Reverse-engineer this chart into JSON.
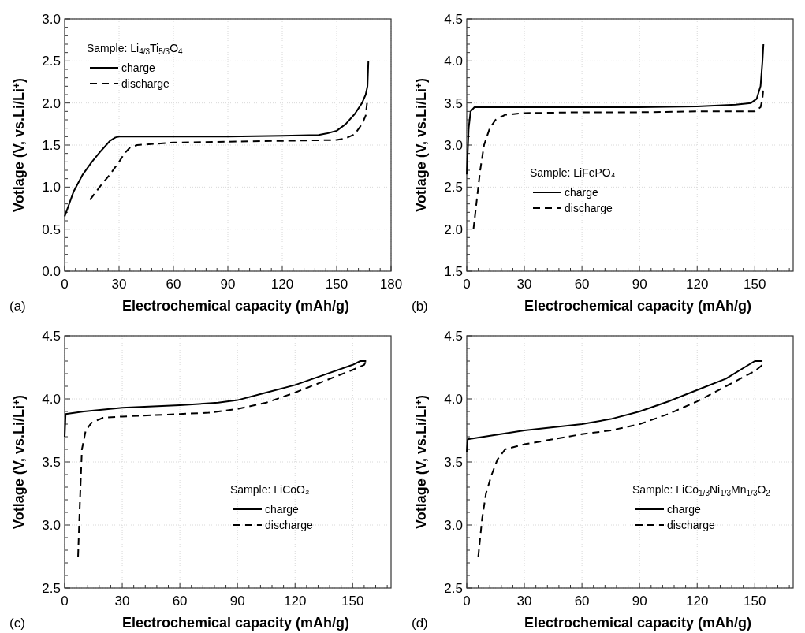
{
  "chart_data": [
    {
      "type": "line",
      "xlabel": "Electrochemical capacity (mAh/g)",
      "ylabel": "Votlage (V, vs.Li/Li$^{+}$)",
      "legend_title": "Sample: Li$_{4/3}$Ti$_{5/3}$O$_{4}$",
      "legend": "top left",
      "grid": true,
      "annotations": [
        "(a)"
      ],
      "xlim": [
        0,
        180
      ],
      "ylim": [
        0,
        3
      ],
      "xticks": [
        0,
        {
          "value": 6,
          "label": null
        },
        {
          "value": 12,
          "label": null
        },
        {
          "value": 18,
          "label": null
        },
        {
          "value": 24,
          "label": null
        },
        30,
        {
          "value": 36,
          "label": null
        },
        {
          "value": 42,
          "label": null
        },
        {
          "value": 48,
          "label": null
        },
        {
          "value": 54,
          "label": null
        },
        60,
        {
          "value": 66,
          "label": null
        },
        {
          "value": 72,
          "label": null
        },
        {
          "value": 78,
          "label": null
        },
        {
          "value": 84,
          "label": null
        },
        90,
        {
          "value": 96,
          "label": null
        },
        {
          "value": 102,
          "label": null
        },
        {
          "value": 108,
          "label": null
        },
        {
          "value": 114,
          "label": null
        },
        120,
        {
          "value": 126,
          "label": null
        },
        {
          "value": 132,
          "label": null
        },
        {
          "value": 138,
          "label": null
        },
        {
          "value": 144,
          "label": null
        },
        150,
        {
          "value": 156,
          "label": null
        },
        {
          "value": 162,
          "label": null
        },
        {
          "value": 168,
          "label": null
        },
        {
          "value": 174,
          "label": null
        },
        180
      ],
      "yticks": [
        {
          "value": 0,
          "label": "0.0"
        },
        {
          "value": 0.1,
          "label": null
        },
        {
          "value": 0.2,
          "label": null
        },
        {
          "value": 0.3,
          "label": null
        },
        {
          "value": 0.4,
          "label": null
        },
        0.5,
        {
          "value": 0.6,
          "label": null
        },
        {
          "value": 0.7,
          "label": null
        },
        {
          "value": 0.8,
          "label": null
        },
        {
          "value": 0.9,
          "label": null
        },
        {
          "value": 1,
          "label": "1.0"
        },
        {
          "value": 1.1,
          "label": null
        },
        {
          "value": 1.2,
          "label": null
        },
        {
          "value": 1.3,
          "label": null
        },
        {
          "value": 1.4,
          "label": null
        },
        1.5,
        {
          "value": 1.6,
          "label": null
        },
        {
          "value": 1.7,
          "label": null
        },
        {
          "value": 1.8,
          "label": null
        },
        {
          "value": 1.9,
          "label": null
        },
        {
          "value": 2,
          "label": "2.0"
        },
        {
          "value": 2.1,
          "label": null
        },
        {
          "value": 2.2,
          "label": null
        },
        {
          "value": 2.3,
          "label": null
        },
        {
          "value": 2.4,
          "label": null
        },
        2.5,
        {
          "value": 2.6,
          "label": null
        },
        {
          "value": 2.7,
          "label": null
        },
        {
          "value": 2.8,
          "label": null
        },
        {
          "value": 2.9,
          "label": null
        },
        {
          "value": 3,
          "label": "3.0"
        }
      ],
      "series": [
        {
          "name": "charge",
          "color": "#000000",
          "line_style": "solid",
          "x": [
            0,
            5,
            10,
            15,
            20,
            25,
            28,
            30,
            60,
            90,
            120,
            140,
            145,
            150,
            155,
            160,
            164,
            166,
            167,
            167.5
          ],
          "values": [
            0.65,
            0.95,
            1.15,
            1.3,
            1.43,
            1.55,
            1.59,
            1.6,
            1.6,
            1.6,
            1.61,
            1.62,
            1.64,
            1.67,
            1.75,
            1.87,
            2.0,
            2.1,
            2.2,
            2.5
          ]
        },
        {
          "name": "discharge",
          "color": "#000000",
          "line_style": "dashed",
          "x": [
            14,
            20,
            25,
            30,
            33,
            36,
            40,
            60,
            90,
            120,
            150,
            155,
            160,
            164,
            166,
            167
          ],
          "values": [
            0.85,
            1.02,
            1.15,
            1.3,
            1.4,
            1.47,
            1.5,
            1.53,
            1.54,
            1.55,
            1.56,
            1.58,
            1.63,
            1.75,
            1.85,
            2.05
          ]
        }
      ]
    },
    {
      "type": "line",
      "xlabel": "Electrochemical capacity (mAh/g)",
      "ylabel": "Votlage (V, vs.Li/Li$^{+}$)",
      "legend_title": "Sample: LiFePO₄",
      "legend": "bottom",
      "grid": true,
      "annotations": [
        "(b)"
      ],
      "xlim": [
        0,
        170
      ],
      "ylim": [
        1.5,
        4.5
      ],
      "xticks": [
        0,
        {
          "value": 6,
          "label": null
        },
        {
          "value": 12,
          "label": null
        },
        {
          "value": 18,
          "label": null
        },
        {
          "value": 24,
          "label": null
        },
        30,
        {
          "value": 36,
          "label": null
        },
        {
          "value": 42,
          "label": null
        },
        {
          "value": 48,
          "label": null
        },
        {
          "value": 54,
          "label": null
        },
        60,
        {
          "value": 66,
          "label": null
        },
        {
          "value": 72,
          "label": null
        },
        {
          "value": 78,
          "label": null
        },
        {
          "value": 84,
          "label": null
        },
        90,
        {
          "value": 96,
          "label": null
        },
        {
          "value": 102,
          "label": null
        },
        {
          "value": 108,
          "label": null
        },
        {
          "value": 114,
          "label": null
        },
        120,
        {
          "value": 126,
          "label": null
        },
        {
          "value": 132,
          "label": null
        },
        {
          "value": 138,
          "label": null
        },
        {
          "value": 144,
          "label": null
        },
        150,
        {
          "value": 156,
          "label": null
        },
        {
          "value": 162,
          "label": null
        },
        {
          "value": 168,
          "label": null
        }
      ],
      "yticks": [
        1.5,
        {
          "value": 1.6,
          "label": null
        },
        {
          "value": 1.7,
          "label": null
        },
        {
          "value": 1.8,
          "label": null
        },
        {
          "value": 1.9,
          "label": null
        },
        {
          "value": 2,
          "label": "2.0"
        },
        {
          "value": 2.1,
          "label": null
        },
        {
          "value": 2.2,
          "label": null
        },
        {
          "value": 2.3,
          "label": null
        },
        {
          "value": 2.4,
          "label": null
        },
        2.5,
        {
          "value": 2.6,
          "label": null
        },
        {
          "value": 2.7,
          "label": null
        },
        {
          "value": 2.8,
          "label": null
        },
        {
          "value": 2.9,
          "label": null
        },
        {
          "value": 3,
          "label": "3.0"
        },
        {
          "value": 3.1,
          "label": null
        },
        {
          "value": 3.2,
          "label": null
        },
        {
          "value": 3.3,
          "label": null
        },
        {
          "value": 3.4,
          "label": null
        },
        3.5,
        {
          "value": 3.6,
          "label": null
        },
        {
          "value": 3.7,
          "label": null
        },
        {
          "value": 3.8,
          "label": null
        },
        {
          "value": 3.9,
          "label": null
        },
        {
          "value": 4,
          "label": "4.0"
        },
        {
          "value": 4.1,
          "label": null
        },
        {
          "value": 4.2,
          "label": null
        },
        {
          "value": 4.3,
          "label": null
        },
        {
          "value": 4.4,
          "label": null
        },
        4.5
      ],
      "series": [
        {
          "name": "charge",
          "color": "#000000",
          "line_style": "solid",
          "x": [
            0,
            1,
            2,
            4,
            30,
            60,
            90,
            120,
            140,
            148,
            151,
            153,
            154,
            154.5
          ],
          "values": [
            2.65,
            3.2,
            3.4,
            3.45,
            3.45,
            3.45,
            3.45,
            3.46,
            3.48,
            3.5,
            3.55,
            3.7,
            4.0,
            4.2
          ]
        },
        {
          "name": "discharge",
          "color": "#000000",
          "line_style": "dashed",
          "x": [
            3.5,
            5,
            7,
            9,
            12,
            15,
            20,
            30,
            60,
            90,
            120,
            150,
            153,
            154,
            154.5
          ],
          "values": [
            2.0,
            2.3,
            2.7,
            3.0,
            3.2,
            3.3,
            3.36,
            3.38,
            3.39,
            3.39,
            3.4,
            3.4,
            3.45,
            3.55,
            3.68
          ]
        }
      ]
    },
    {
      "type": "line",
      "xlabel": "Electrochemical capacity (mAh/g)",
      "ylabel": "Votlage (V, vs.Li/Li$^{+}$)",
      "legend_title": "Sample: LiCoO₂",
      "legend": "bottom right",
      "grid": true,
      "annotations": [
        "(c)"
      ],
      "xlim": [
        0,
        170
      ],
      "ylim": [
        2.5,
        4.5
      ],
      "xticks": [
        0,
        {
          "value": 6,
          "label": null
        },
        {
          "value": 12,
          "label": null
        },
        {
          "value": 18,
          "label": null
        },
        {
          "value": 24,
          "label": null
        },
        30,
        {
          "value": 36,
          "label": null
        },
        {
          "value": 42,
          "label": null
        },
        {
          "value": 48,
          "label": null
        },
        {
          "value": 54,
          "label": null
        },
        60,
        {
          "value": 66,
          "label": null
        },
        {
          "value": 72,
          "label": null
        },
        {
          "value": 78,
          "label": null
        },
        {
          "value": 84,
          "label": null
        },
        90,
        {
          "value": 96,
          "label": null
        },
        {
          "value": 102,
          "label": null
        },
        {
          "value": 108,
          "label": null
        },
        {
          "value": 114,
          "label": null
        },
        120,
        {
          "value": 126,
          "label": null
        },
        {
          "value": 132,
          "label": null
        },
        {
          "value": 138,
          "label": null
        },
        {
          "value": 144,
          "label": null
        },
        150,
        {
          "value": 156,
          "label": null
        },
        {
          "value": 162,
          "label": null
        },
        {
          "value": 168,
          "label": null
        }
      ],
      "yticks": [
        2.5,
        {
          "value": 2.6,
          "label": null
        },
        {
          "value": 2.7,
          "label": null
        },
        {
          "value": 2.8,
          "label": null
        },
        {
          "value": 2.9,
          "label": null
        },
        {
          "value": 3,
          "label": "3.0"
        },
        {
          "value": 3.1,
          "label": null
        },
        {
          "value": 3.2,
          "label": null
        },
        {
          "value": 3.3,
          "label": null
        },
        {
          "value": 3.4,
          "label": null
        },
        3.5,
        {
          "value": 3.6,
          "label": null
        },
        {
          "value": 3.7,
          "label": null
        },
        {
          "value": 3.8,
          "label": null
        },
        {
          "value": 3.9,
          "label": null
        },
        {
          "value": 4,
          "label": "4.0"
        },
        {
          "value": 4.1,
          "label": null
        },
        {
          "value": 4.2,
          "label": null
        },
        {
          "value": 4.3,
          "label": null
        },
        {
          "value": 4.4,
          "label": null
        },
        4.5
      ],
      "series": [
        {
          "name": "charge",
          "color": "#000000",
          "line_style": "solid",
          "x": [
            0,
            0.5,
            10,
            30,
            60,
            80,
            90,
            105,
            120,
            135,
            150,
            154,
            157
          ],
          "values": [
            3.7,
            3.88,
            3.9,
            3.93,
            3.95,
            3.97,
            3.99,
            4.05,
            4.11,
            4.19,
            4.27,
            4.3,
            4.3
          ]
        },
        {
          "name": "discharge",
          "color": "#000000",
          "line_style": "dashed",
          "x": [
            7,
            8,
            9,
            11,
            14,
            20,
            30,
            60,
            75,
            90,
            105,
            120,
            135,
            150,
            156,
            157
          ],
          "values": [
            2.75,
            3.2,
            3.6,
            3.75,
            3.81,
            3.85,
            3.86,
            3.88,
            3.89,
            3.92,
            3.97,
            4.05,
            4.14,
            4.23,
            4.27,
            4.3
          ]
        }
      ]
    },
    {
      "type": "line",
      "xlabel": "Electrochemical capacity (mAh/g)",
      "ylabel": "Votlage (V, vs.Li/Li$^{+}$)",
      "legend_title": "Sample: LiCo$_{1/3}$Ni$_{1/3}$Mn$_{1/3}$O$_{2}$",
      "legend": "bottom right",
      "grid": true,
      "annotations": [
        "(d)"
      ],
      "xlim": [
        0,
        170
      ],
      "ylim": [
        2.5,
        4.5
      ],
      "xticks": [
        0,
        {
          "value": 6,
          "label": null
        },
        {
          "value": 12,
          "label": null
        },
        {
          "value": 18,
          "label": null
        },
        {
          "value": 24,
          "label": null
        },
        30,
        {
          "value": 36,
          "label": null
        },
        {
          "value": 42,
          "label": null
        },
        {
          "value": 48,
          "label": null
        },
        {
          "value": 54,
          "label": null
        },
        60,
        {
          "value": 66,
          "label": null
        },
        {
          "value": 72,
          "label": null
        },
        {
          "value": 78,
          "label": null
        },
        {
          "value": 84,
          "label": null
        },
        90,
        {
          "value": 96,
          "label": null
        },
        {
          "value": 102,
          "label": null
        },
        {
          "value": 108,
          "label": null
        },
        {
          "value": 114,
          "label": null
        },
        120,
        {
          "value": 126,
          "label": null
        },
        {
          "value": 132,
          "label": null
        },
        {
          "value": 138,
          "label": null
        },
        {
          "value": 144,
          "label": null
        },
        150,
        {
          "value": 156,
          "label": null
        },
        {
          "value": 162,
          "label": null
        },
        {
          "value": 168,
          "label": null
        }
      ],
      "yticks": [
        2.5,
        {
          "value": 2.6,
          "label": null
        },
        {
          "value": 2.7,
          "label": null
        },
        {
          "value": 2.8,
          "label": null
        },
        {
          "value": 2.9,
          "label": null
        },
        {
          "value": 3,
          "label": "3.0"
        },
        {
          "value": 3.1,
          "label": null
        },
        {
          "value": 3.2,
          "label": null
        },
        {
          "value": 3.3,
          "label": null
        },
        {
          "value": 3.4,
          "label": null
        },
        3.5,
        {
          "value": 3.6,
          "label": null
        },
        {
          "value": 3.7,
          "label": null
        },
        {
          "value": 3.8,
          "label": null
        },
        {
          "value": 3.9,
          "label": null
        },
        {
          "value": 4,
          "label": "4.0"
        },
        {
          "value": 4.1,
          "label": null
        },
        {
          "value": 4.2,
          "label": null
        },
        {
          "value": 4.3,
          "label": null
        },
        {
          "value": 4.4,
          "label": null
        },
        4.5
      ],
      "series": [
        {
          "name": "charge",
          "color": "#000000",
          "line_style": "solid",
          "x": [
            0,
            0.5,
            5,
            30,
            60,
            75,
            90,
            105,
            120,
            135,
            150,
            154
          ],
          "values": [
            3.58,
            3.68,
            3.69,
            3.75,
            3.8,
            3.84,
            3.9,
            3.98,
            4.07,
            4.16,
            4.3,
            4.3
          ]
        },
        {
          "name": "discharge",
          "color": "#000000",
          "line_style": "dashed",
          "x": [
            6,
            8,
            10,
            13,
            16,
            20,
            30,
            60,
            75,
            90,
            105,
            120,
            135,
            150,
            154,
            154.5
          ],
          "values": [
            2.75,
            3.05,
            3.25,
            3.4,
            3.52,
            3.6,
            3.64,
            3.72,
            3.75,
            3.8,
            3.88,
            3.98,
            4.1,
            4.22,
            4.27,
            4.3
          ]
        }
      ]
    }
  ]
}
